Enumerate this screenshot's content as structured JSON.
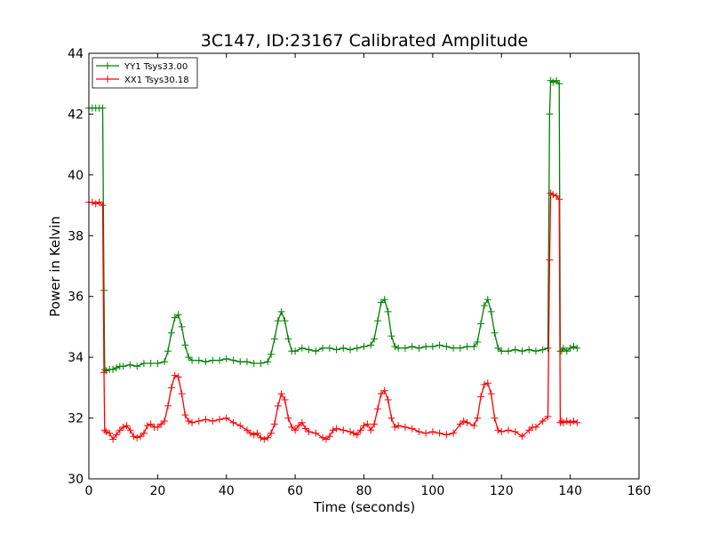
{
  "chart_data": {
    "type": "line",
    "title": "3C147, ID:23167 Calibrated Amplitude",
    "xlabel": "Time (seconds)",
    "ylabel": "Power in Kelvin",
    "xlim": [
      0,
      160
    ],
    "ylim": [
      30,
      44
    ],
    "xticks": [
      "0",
      "20",
      "40",
      "60",
      "80",
      "100",
      "120",
      "140",
      "160"
    ],
    "yticks": [
      "30",
      "32",
      "34",
      "36",
      "38",
      "40",
      "42",
      "44"
    ],
    "grid": false,
    "legend_position": "top-left",
    "series": [
      {
        "name": "YY1 Tsys33.00",
        "color": "#008000",
        "marker": "plus",
        "x": [
          0,
          1,
          2,
          3,
          4,
          4.4,
          4.6,
          5,
          6,
          7,
          8,
          9,
          10,
          12,
          14,
          16,
          18,
          20,
          22,
          23,
          24,
          25,
          26,
          27,
          28,
          29,
          30,
          32,
          34,
          36,
          38,
          40,
          42,
          44,
          46,
          48,
          50,
          52,
          53,
          54,
          55,
          56,
          57,
          58,
          59,
          60,
          62,
          64,
          66,
          68,
          70,
          72,
          74,
          76,
          78,
          80,
          82,
          83,
          84,
          85,
          86,
          87,
          88,
          89,
          90,
          92,
          94,
          96,
          98,
          100,
          102,
          104,
          106,
          108,
          110,
          112,
          113,
          114,
          115,
          116,
          117,
          118,
          119,
          120,
          122,
          124,
          126,
          128,
          130,
          132,
          133.5,
          134,
          134.3,
          135,
          136,
          136.8,
          137.1,
          137.5,
          138,
          139,
          140,
          141,
          142
        ],
        "y": [
          42.2,
          42.2,
          42.2,
          42.2,
          42.2,
          36.2,
          33.6,
          33.55,
          33.6,
          33.6,
          33.65,
          33.7,
          33.7,
          33.75,
          33.7,
          33.8,
          33.8,
          33.8,
          33.85,
          34.2,
          34.8,
          35.3,
          35.4,
          35.0,
          34.4,
          34.0,
          33.9,
          33.9,
          33.85,
          33.9,
          33.9,
          33.95,
          33.9,
          33.85,
          33.85,
          33.8,
          33.8,
          33.85,
          34.1,
          34.6,
          35.2,
          35.5,
          35.2,
          34.6,
          34.2,
          34.2,
          34.3,
          34.25,
          34.2,
          34.3,
          34.3,
          34.25,
          34.3,
          34.25,
          34.3,
          34.35,
          34.4,
          34.6,
          35.2,
          35.8,
          35.9,
          35.5,
          34.7,
          34.35,
          34.3,
          34.3,
          34.35,
          34.3,
          34.35,
          34.35,
          34.4,
          34.35,
          34.3,
          34.3,
          34.35,
          34.35,
          34.5,
          35.1,
          35.7,
          35.9,
          35.5,
          34.8,
          34.3,
          34.2,
          34.2,
          34.25,
          34.2,
          34.25,
          34.2,
          34.25,
          34.3,
          42.0,
          43.1,
          43.05,
          43.1,
          43.0,
          34.2,
          34.2,
          34.3,
          34.2,
          34.3,
          34.35,
          34.3
        ]
      },
      {
        "name": "XX1 Tsys30.18",
        "color": "#ff0000",
        "marker": "plus",
        "x": [
          0,
          1,
          2,
          3,
          4,
          4.4,
          4.6,
          5,
          6,
          7,
          8,
          9,
          10,
          11,
          12,
          13,
          14,
          15,
          16,
          17,
          18,
          19,
          20,
          21,
          22,
          23,
          24,
          25,
          26,
          27,
          28,
          29,
          30,
          32,
          34,
          36,
          38,
          40,
          42,
          44,
          46,
          47,
          48,
          49,
          50,
          51,
          52,
          53,
          54,
          55,
          56,
          57,
          58,
          59,
          60,
          61,
          62,
          63,
          64,
          66,
          68,
          69,
          70,
          71,
          72,
          74,
          76,
          77,
          78,
          79,
          80,
          81,
          82,
          83,
          84,
          85,
          86,
          87,
          88,
          89,
          90,
          92,
          94,
          96,
          98,
          100,
          102,
          104,
          106,
          108,
          109,
          110,
          112,
          113,
          114,
          115,
          116,
          117,
          118,
          119,
          120,
          122,
          124,
          126,
          128,
          129,
          130,
          132,
          133.5,
          134,
          134.3,
          135,
          136,
          136.8,
          137.1,
          137.5,
          138,
          139,
          140,
          141,
          142
        ],
        "y": [
          39.1,
          39.1,
          39.05,
          39.1,
          39.0,
          33.5,
          31.6,
          31.55,
          31.5,
          31.3,
          31.45,
          31.6,
          31.7,
          31.75,
          31.6,
          31.4,
          31.35,
          31.4,
          31.5,
          31.75,
          31.8,
          31.7,
          31.7,
          31.8,
          31.9,
          32.4,
          33.0,
          33.4,
          33.35,
          32.8,
          32.1,
          31.9,
          31.85,
          31.9,
          31.95,
          31.9,
          31.95,
          32.0,
          31.85,
          31.75,
          31.6,
          31.5,
          31.45,
          31.5,
          31.35,
          31.3,
          31.35,
          31.5,
          31.8,
          32.4,
          32.8,
          32.6,
          32.0,
          31.7,
          31.6,
          31.75,
          31.85,
          31.65,
          31.55,
          31.5,
          31.35,
          31.3,
          31.4,
          31.6,
          31.65,
          31.6,
          31.55,
          31.5,
          31.45,
          31.6,
          31.75,
          31.8,
          31.6,
          31.8,
          32.3,
          32.8,
          32.9,
          32.6,
          32.0,
          31.7,
          31.75,
          31.7,
          31.65,
          31.55,
          31.5,
          31.55,
          31.5,
          31.45,
          31.5,
          31.8,
          31.9,
          31.85,
          31.75,
          32.0,
          32.7,
          33.1,
          33.15,
          32.8,
          32.0,
          31.6,
          31.55,
          31.6,
          31.55,
          31.4,
          31.6,
          31.7,
          31.7,
          31.9,
          32.05,
          37.2,
          39.4,
          39.35,
          39.3,
          39.2,
          31.85,
          31.9,
          31.85,
          31.9,
          31.85,
          31.9,
          31.85
        ]
      }
    ]
  }
}
